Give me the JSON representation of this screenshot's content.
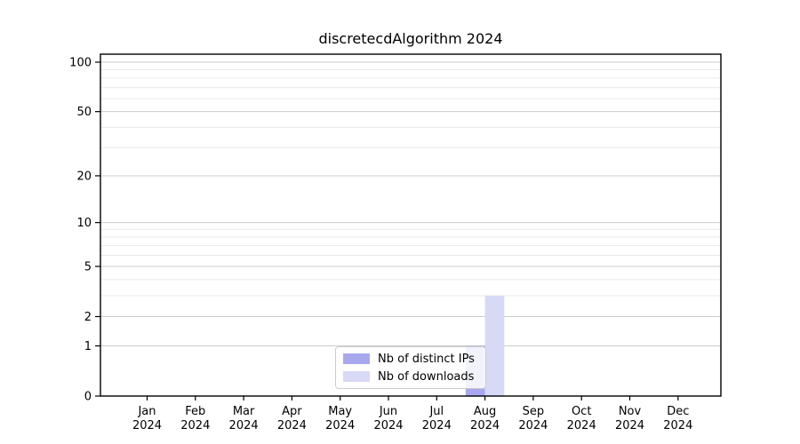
{
  "chart_data": {
    "type": "bar",
    "title": "discretecdAlgorithm 2024",
    "categories": [
      "Jan",
      "Feb",
      "Mar",
      "Apr",
      "May",
      "Jun",
      "Jul",
      "Aug",
      "Sep",
      "Oct",
      "Nov",
      "Dec"
    ],
    "x_tick_second_line": "2024",
    "series": [
      {
        "name": "Nb of distinct IPs",
        "color": "#a8a8ee",
        "values": [
          0,
          0,
          0,
          0,
          0,
          0,
          0,
          1,
          0,
          0,
          0,
          0
        ]
      },
      {
        "name": "Nb of downloads",
        "color": "#d8d8f7",
        "values": [
          0,
          0,
          0,
          0,
          0,
          0,
          0,
          3,
          0,
          0,
          0,
          0
        ]
      }
    ],
    "yscale": "log1p",
    "ylim": [
      0,
      112
    ],
    "y_major_ticks": [
      0,
      1,
      2,
      5,
      10,
      20,
      50,
      100
    ],
    "y_minor_gridlines": [
      3,
      4,
      6,
      7,
      8,
      9,
      30,
      40,
      60,
      70,
      80,
      90
    ],
    "grid": true,
    "legend_position": "lower center",
    "colors": {
      "major_grid": "#cccccc",
      "minor_grid": "#e9e9e9",
      "axis": "#000000",
      "text": "#000000",
      "background": "#ffffff"
    }
  }
}
